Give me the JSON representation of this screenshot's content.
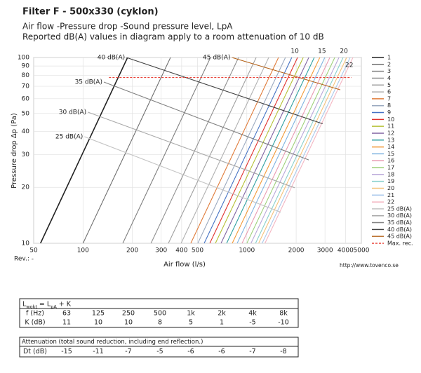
{
  "chart_data": {
    "type": "line",
    "title": "Filter F - 500x330 (cyklon)",
    "subtitle": [
      "Air flow -Pressure drop -Sound pressure level, LpA",
      "Reported dB(A) values in diagram apply to a room attenuation of 10 dB"
    ],
    "xlabel": "Air flow (l/s)",
    "ylabel": "Pressure drop Δp (Pa)",
    "xlog": true,
    "ylog": true,
    "grid": true,
    "legend": "right",
    "xlim": [
      50,
      5000
    ],
    "ylim": [
      10,
      100
    ],
    "xticks": [
      50,
      100,
      200,
      300,
      400,
      500,
      1000,
      2000,
      3000,
      4000,
      5000
    ],
    "yticks": [
      10,
      20,
      30,
      40,
      50,
      60,
      70,
      80,
      90,
      100
    ],
    "series": [
      {
        "name": "1",
        "color": "#222222",
        "width": 1.6,
        "x": [
          55,
          187
        ],
        "values": [
          10,
          100
        ]
      },
      {
        "name": "2",
        "color": "#6e6e6e",
        "x": [
          100,
          342
        ],
        "values": [
          10,
          100
        ]
      },
      {
        "name": "3",
        "color": "#7f7f7f",
        "x": [
          175,
          600
        ],
        "values": [
          10,
          100
        ]
      },
      {
        "name": "4",
        "color": "#8f8f8f",
        "x": [
          260,
          890
        ],
        "values": [
          10,
          100
        ]
      },
      {
        "name": "5",
        "color": "#a0a0a0",
        "x": [
          332,
          1140
        ],
        "values": [
          10,
          100
        ]
      },
      {
        "name": "6",
        "color": "#b0b0b0",
        "x": [
          397,
          1360
        ],
        "values": [
          10,
          100
        ]
      },
      {
        "name": "7",
        "color": "#e07b39",
        "x": [
          455,
          1560
        ],
        "values": [
          10,
          100
        ]
      },
      {
        "name": "8",
        "color": "#9aa9bf",
        "x": [
          502,
          1720
        ],
        "values": [
          10,
          100
        ]
      },
      {
        "name": "9",
        "color": "#4472c4",
        "x": [
          549,
          1880
        ],
        "values": [
          10,
          100
        ]
      },
      {
        "name": "10",
        "color": "#e0302c",
        "x": [
          594,
          2040
        ],
        "values": [
          10,
          100
        ]
      },
      {
        "name": "11",
        "color": "#b5c035",
        "x": [
          643,
          2210
        ],
        "values": [
          10,
          100
        ]
      },
      {
        "name": "12",
        "color": "#8064a2",
        "x": [
          696,
          2390
        ],
        "values": [
          10,
          100
        ]
      },
      {
        "name": "13",
        "color": "#2fa0a0",
        "x": [
          753,
          2580
        ],
        "values": [
          10,
          100
        ]
      },
      {
        "name": "14",
        "color": "#f29a38",
        "x": [
          815,
          2790
        ],
        "values": [
          10,
          100
        ]
      },
      {
        "name": "15",
        "color": "#7fb3e0",
        "x": [
          873,
          2990
        ],
        "values": [
          10,
          100
        ]
      },
      {
        "name": "16",
        "color": "#e89ab0",
        "x": [
          935,
          3210
        ],
        "values": [
          10,
          100
        ]
      },
      {
        "name": "17",
        "color": "#9ed07a",
        "x": [
          1000,
          3440
        ],
        "values": [
          10,
          100
        ]
      },
      {
        "name": "18",
        "color": "#b8a6d8",
        "x": [
          1060,
          3650
        ],
        "values": [
          10,
          100
        ]
      },
      {
        "name": "19",
        "color": "#88d0cc",
        "x": [
          1130,
          3870
        ],
        "values": [
          10,
          100
        ]
      },
      {
        "name": "20",
        "color": "#f6c27a",
        "x": [
          1180,
          4070
        ],
        "values": [
          10,
          100
        ]
      },
      {
        "name": "21",
        "color": "#a9c8ec",
        "x": [
          1240,
          4270
        ],
        "values": [
          10,
          100
        ]
      },
      {
        "name": "22",
        "color": "#f4b6c2",
        "x": [
          1290,
          4440
        ],
        "values": [
          10,
          100
        ]
      },
      {
        "name": "25 dB(A)",
        "color": "#c4c4c4",
        "x": [
          102,
          1610
        ],
        "values": [
          37.5,
          14.7
        ]
      },
      {
        "name": "30 dB(A)",
        "color": "#a8a8a8",
        "x": [
          107,
          1960
        ],
        "values": [
          50.8,
          19.9
        ]
      },
      {
        "name": "35 dB(A)",
        "color": "#808080",
        "x": [
          134,
          2390
        ],
        "values": [
          73.8,
          28.1
        ]
      },
      {
        "name": "40 dB(A)",
        "color": "#404040",
        "x": [
          184,
          2900
        ],
        "values": [
          100,
          44
        ]
      },
      {
        "name": "45 dB(A)",
        "color": "#b5651d",
        "x": [
          810,
          3720
        ],
        "values": [
          100,
          67
        ]
      },
      {
        "name": "Max. rec.",
        "color": "#e8443a",
        "dash": true,
        "x": [
          144,
          4350
        ],
        "values": [
          78,
          78
        ]
      }
    ]
  },
  "rev": "Rev.: -",
  "url": "http://www.tovenco.se",
  "tables": [
    {
      "formula": [
        "L",
        "wokt",
        " = L",
        "pA",
        " + K"
      ],
      "rows": [
        {
          "label": "f (Hz)",
          "cells": [
            "63",
            "125",
            "250",
            "500",
            "1k",
            "2k",
            "4k",
            "8k"
          ]
        },
        {
          "label": "K (dB)",
          "cells": [
            11,
            10,
            10,
            8,
            5,
            1,
            -5,
            -10
          ]
        }
      ]
    },
    {
      "title": "Attenuation (total sound reduction, including end reflection.)",
      "rows": [
        {
          "label": "Dt (dB)",
          "cells": [
            -15,
            -11,
            -7,
            -5,
            -6,
            -6,
            -7,
            -8
          ]
        }
      ]
    }
  ]
}
